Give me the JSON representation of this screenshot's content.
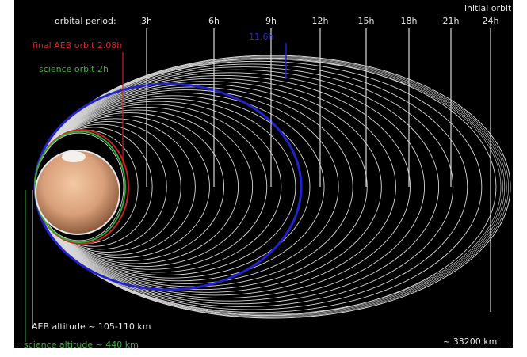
{
  "labels": {
    "orbital_period": "orbital period:",
    "initial_orbit": "initial orbit",
    "final_aeb": "final AEB orbit 2.08h",
    "science_orbit": "science orbit 2h",
    "blue_orbit": "11.6h",
    "aeb_altitude": "AEB altitude ~ 105-110 km",
    "science_altitude": "science altitude ~ 440 km",
    "apoapsis_distance": "~ 33200 km"
  },
  "period_ticks": [
    "3h",
    "6h",
    "9h",
    "12h",
    "15h",
    "18h",
    "21h",
    "24h"
  ],
  "colors": {
    "background": "#000000",
    "orbit_lines": "#d8d8d8",
    "final_aeb_orbit": "#cc2222",
    "science_orbit": "#33aa33",
    "highlight_orbit": "#2222cc",
    "planet": "#d9a07a"
  }
}
